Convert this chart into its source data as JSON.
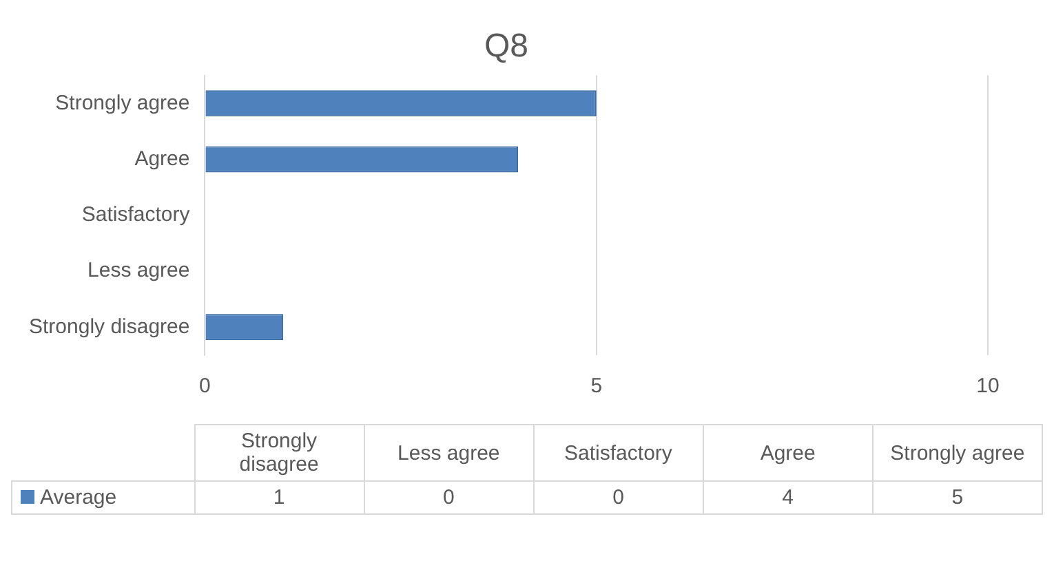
{
  "chart_data": [
    {
      "type": "bar",
      "orientation": "horizontal",
      "title": "Q8",
      "categories": [
        "Strongly agree",
        "Agree",
        "Satisfactory",
        "Less agree",
        "Strongly disagree"
      ],
      "series": [
        {
          "color": "#4f81bd",
          "values": [
            5,
            4,
            0,
            0,
            1
          ]
        }
      ],
      "xlim": [
        0,
        10
      ],
      "xticks": [
        0,
        5,
        10
      ],
      "grid": "x"
    },
    {
      "type": "other",
      "categories": [
        "Strongly disagree",
        "Less agree",
        "Satisfactory",
        "Agree",
        "Strongly agree"
      ],
      "series": [
        {
          "name": "Average",
          "color": "#4f81bd",
          "values": [
            1,
            0,
            0,
            4,
            5
          ]
        }
      ],
      "legend": "left",
      "data_labels": true
    }
  ]
}
